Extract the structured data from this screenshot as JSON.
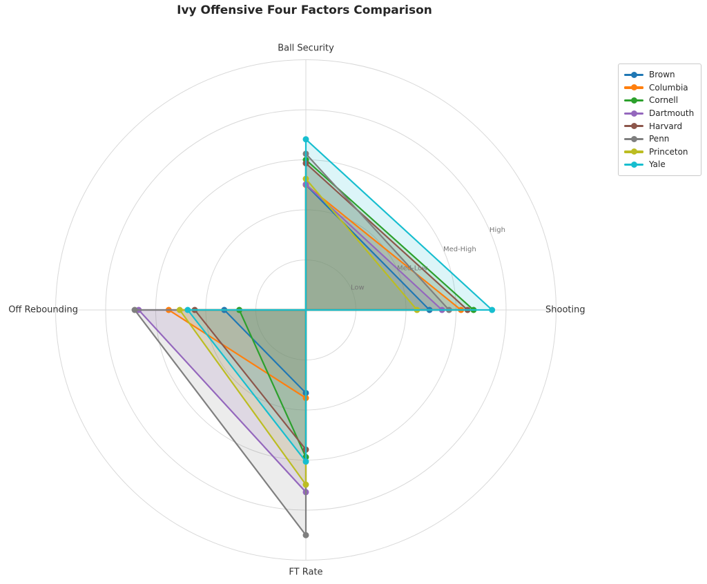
{
  "title": "Ivy Offensive Four Factors Comparison",
  "chart_data": {
    "type": "radar",
    "categories": [
      "Ball Security",
      "Shooting",
      "Off Rebounding",
      "FT Rate"
    ],
    "tick_labels": [
      "Low",
      "Med-Low",
      "Med-High",
      "High"
    ],
    "scale": {
      "min": 0,
      "max": 5,
      "ring_count": 5,
      "tick_values": [
        1,
        2,
        3,
        4
      ],
      "tick_label_angle_deg": 22.5
    },
    "series": [
      {
        "name": "Brown",
        "color": "#1f77b4",
        "values": [
          2.5,
          2.47,
          1.63,
          1.66
        ]
      },
      {
        "name": "Columbia",
        "color": "#ff7f0e",
        "values": [
          2.5,
          3.1,
          2.74,
          1.76
        ]
      },
      {
        "name": "Cornell",
        "color": "#2ca02c",
        "values": [
          3.0,
          3.35,
          1.33,
          2.94
        ]
      },
      {
        "name": "Dartmouth",
        "color": "#9467bd",
        "values": [
          2.51,
          2.72,
          3.34,
          3.64
        ]
      },
      {
        "name": "Harvard",
        "color": "#8c564b",
        "values": [
          2.93,
          3.23,
          2.22,
          2.79
        ]
      },
      {
        "name": "Penn",
        "color": "#7f7f7f",
        "values": [
          3.12,
          2.86,
          3.42,
          4.5
        ]
      },
      {
        "name": "Princeton",
        "color": "#bcbd22",
        "values": [
          2.62,
          2.22,
          2.52,
          3.49
        ]
      },
      {
        "name": "Yale",
        "color": "#17becf",
        "values": [
          3.41,
          3.72,
          2.36,
          3.03
        ]
      }
    ],
    "legend_position": "upper right",
    "fill_opacity": 0.15,
    "grid": true
  },
  "style": {
    "grid_color": "#d8d8d8",
    "tick_label_color": "#767676",
    "axis_label_color": "#333333",
    "title_color": "#262626",
    "background": "#ffffff"
  }
}
